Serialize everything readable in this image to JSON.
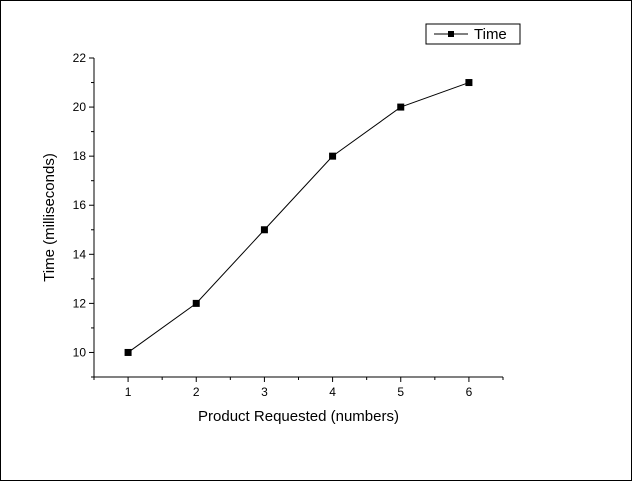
{
  "chart_data": {
    "type": "line",
    "xlabel": "Product Requested (numbers)",
    "ylabel": "Time (milliseconds)",
    "xlim": [
      0.5,
      6.5
    ],
    "ylim": [
      9,
      22
    ],
    "x_ticks": [
      1,
      2,
      3,
      4,
      5,
      6
    ],
    "y_ticks": [
      10,
      12,
      14,
      16,
      18,
      20,
      22
    ],
    "legend_position": "top-right",
    "grid": false,
    "series": [
      {
        "name": "Time",
        "x": [
          1,
          2,
          3,
          4,
          5,
          6
        ],
        "values": [
          10,
          12,
          15,
          18,
          20,
          21
        ],
        "marker": "square",
        "color": "#000000"
      }
    ]
  }
}
